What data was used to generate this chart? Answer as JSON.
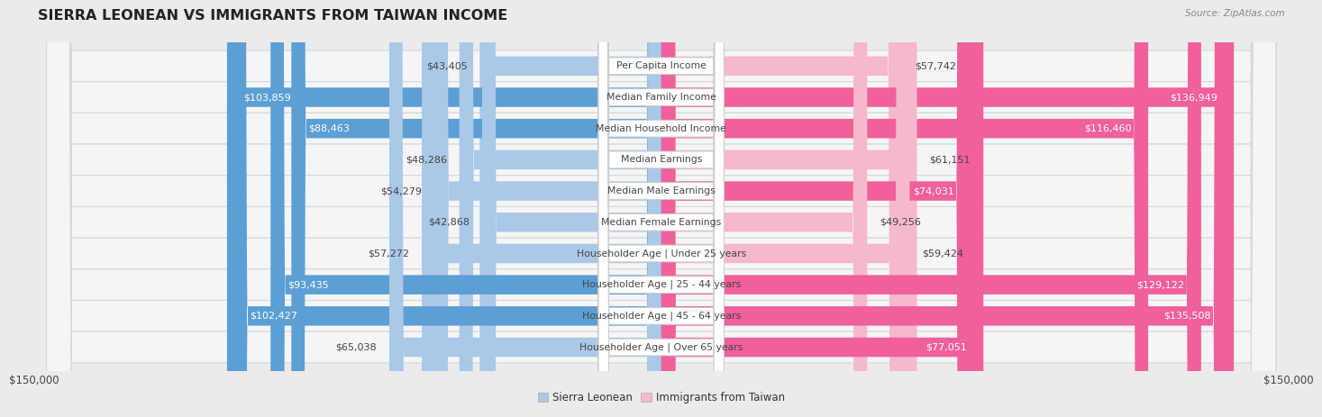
{
  "title": "SIERRA LEONEAN VS IMMIGRANTS FROM TAIWAN INCOME",
  "source": "Source: ZipAtlas.com",
  "categories": [
    "Per Capita Income",
    "Median Family Income",
    "Median Household Income",
    "Median Earnings",
    "Median Male Earnings",
    "Median Female Earnings",
    "Householder Age | Under 25 years",
    "Householder Age | 25 - 44 years",
    "Householder Age | 45 - 64 years",
    "Householder Age | Over 65 years"
  ],
  "sierra_leone_values": [
    43405,
    103859,
    88463,
    48286,
    54279,
    42868,
    57272,
    93435,
    102427,
    65038
  ],
  "taiwan_values": [
    57742,
    136949,
    116460,
    61151,
    74031,
    49256,
    59424,
    129122,
    135508,
    77051
  ],
  "sierra_leone_labels": [
    "$43,405",
    "$103,859",
    "$88,463",
    "$48,286",
    "$54,279",
    "$42,868",
    "$57,272",
    "$93,435",
    "$102,427",
    "$65,038"
  ],
  "taiwan_labels": [
    "$57,742",
    "$136,949",
    "$116,460",
    "$61,151",
    "$74,031",
    "$49,256",
    "$59,424",
    "$129,122",
    "$135,508",
    "$77,051"
  ],
  "max_value": 150000,
  "bar_height": 0.62,
  "sl_light_color": "#aac8e8",
  "sl_dark_color": "#5b9fd4",
  "tw_light_color": "#f5b8cc",
  "tw_dark_color": "#f0609a",
  "bg_color": "#ebebeb",
  "row_bg_color": "#f5f5f5",
  "row_border_color": "#d8d8d8",
  "center_box_color": "#ffffff",
  "center_border_color": "#cccccc",
  "label_inside_color": "#ffffff",
  "label_outside_color": "#444444",
  "center_text_color": "#444444",
  "title_color": "#222222",
  "source_color": "#888888",
  "tick_color": "#444444",
  "dark_threshold": 70000,
  "title_fontsize": 11.5,
  "source_fontsize": 7.5,
  "bar_label_fontsize": 8,
  "category_fontsize": 7.8,
  "legend_fontsize": 8.5,
  "x_tick_labels": [
    "$150,000",
    "$150,000"
  ]
}
